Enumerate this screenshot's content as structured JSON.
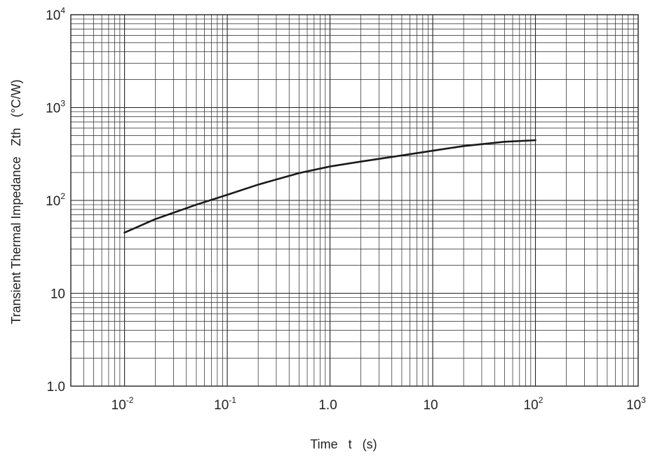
{
  "chart_data": {
    "type": "line",
    "xscale": "log",
    "yscale": "log",
    "xlim": [
      0.003,
      1000
    ],
    "ylim": [
      1,
      10000
    ],
    "grid": true,
    "xlabel": "Time   t   (s)",
    "ylabel": "Transient Thermal Impedance   Zth   (°C/W)",
    "x_ticks": [
      {
        "base": "10",
        "exp": "-2"
      },
      {
        "base": "10",
        "exp": "-1"
      },
      {
        "base": "1.0",
        "exp": ""
      },
      {
        "base": "10",
        "exp": ""
      },
      {
        "base": "10",
        "exp": "2"
      },
      {
        "base": "10",
        "exp": "3"
      }
    ],
    "y_ticks": [
      {
        "base": "1.0",
        "exp": ""
      },
      {
        "base": "10",
        "exp": ""
      },
      {
        "base": "10",
        "exp": "2"
      },
      {
        "base": "10",
        "exp": "3"
      },
      {
        "base": "10",
        "exp": "4"
      }
    ],
    "series": [
      {
        "x": [
          0.01,
          0.02,
          0.05,
          0.1,
          0.2,
          0.5,
          1.0,
          2.0,
          5.0,
          10,
          20,
          50,
          100
        ],
        "y": [
          45,
          63,
          90,
          115,
          148,
          197,
          232,
          262,
          305,
          343,
          385,
          428,
          445
        ]
      }
    ],
    "colors": {
      "line": "#1a1a1a",
      "grid": "#222222"
    }
  }
}
